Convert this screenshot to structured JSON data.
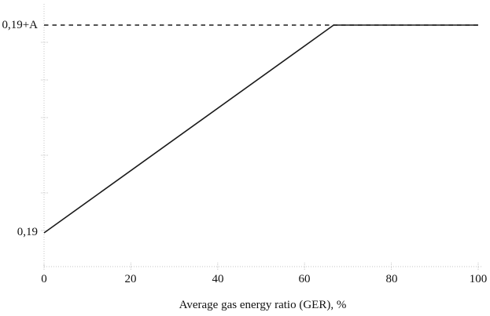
{
  "chart_data": {
    "type": "line",
    "title": "",
    "xlabel": "Average gas energy ratio (GER), %",
    "ylabel": "",
    "xlim": [
      0,
      100
    ],
    "x_ticks": [
      0,
      20,
      40,
      60,
      80,
      100
    ],
    "y_tick_labels": [
      "0,19",
      "0,19+A"
    ],
    "grid": false,
    "legend": "none",
    "axis_color": "#c6c6c6",
    "line_color": "#1a1a1a",
    "series": [
      {
        "name": "value-vs-GER",
        "style": "solid",
        "points": [
          [
            0,
            "0,19"
          ],
          [
            66.7,
            "0,19+A"
          ],
          [
            100,
            "0,19+A"
          ]
        ]
      },
      {
        "name": "upper-level-reference",
        "style": "dashed",
        "points": [
          [
            0,
            "0,19+A"
          ],
          [
            100,
            "0,19+A"
          ]
        ]
      }
    ]
  }
}
